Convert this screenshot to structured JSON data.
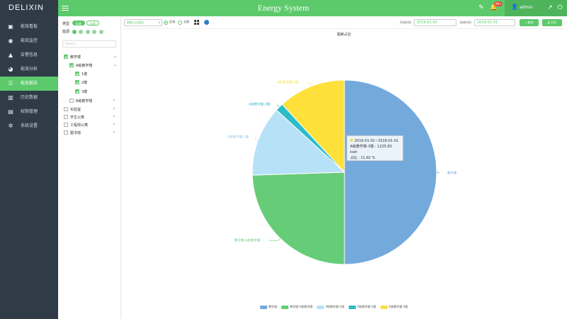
{
  "header": {
    "logo": "DELIXIN",
    "title": "Energy System",
    "notification_badge": "99+",
    "username": "admin",
    "accent": "#5cc96b",
    "dark": "#2f3c48"
  },
  "sidebar": {
    "items": [
      {
        "label": "能效看板",
        "icon": "dashboard-icon"
      },
      {
        "label": "能效监控",
        "icon": "eye-icon"
      },
      {
        "label": "告警信息",
        "icon": "bell-icon"
      },
      {
        "label": "能效分析",
        "icon": "chart-pie-icon"
      },
      {
        "label": "能效报告",
        "icon": "report-icon"
      },
      {
        "label": "历史数据",
        "icon": "bar-chart-icon"
      },
      {
        "label": "权限管理",
        "icon": "user-card-icon"
      },
      {
        "label": "系统设置",
        "icon": "gear-icon"
      }
    ],
    "active_index": 4
  },
  "filter": {
    "type_label": "类型",
    "type_options": [
      "区域",
      "支路"
    ],
    "energy_label": "能源",
    "search_placeholder": "Search...",
    "tree": [
      {
        "label": "教学楼",
        "checked": true,
        "level": 0,
        "expanded": true
      },
      {
        "label": "A栋教学楼",
        "checked": true,
        "level": 1,
        "expanded": true
      },
      {
        "label": "1楼",
        "checked": true,
        "level": 2
      },
      {
        "label": "2楼",
        "checked": true,
        "level": 2
      },
      {
        "label": "3楼",
        "checked": true,
        "level": 2
      },
      {
        "label": "B栋教学楼",
        "checked": false,
        "level": 1,
        "expanded": false
      },
      {
        "label": "实验室",
        "checked": false,
        "level": 0,
        "expanded": false
      },
      {
        "label": "学生公寓",
        "checked": false,
        "level": 0,
        "expanded": false
      },
      {
        "label": "工程师公寓",
        "checked": false,
        "level": 0,
        "expanded": false
      },
      {
        "label": "图书馆",
        "checked": false,
        "level": 0,
        "expanded": false
      }
    ]
  },
  "toolbar": {
    "report_type": "能耗占比报告",
    "radio_area": "区域",
    "radio_branch": "支路",
    "start_label": "开始时间",
    "start_value": "2019-01-01",
    "end_label": "结束时间",
    "end_value": "2019-01-01",
    "query_label": "查询",
    "print_label": "打印"
  },
  "chart_data": {
    "type": "pie",
    "title": "能耗占比",
    "slices": [
      {
        "name": "教学楼",
        "value": 50.0,
        "color": "#74a9dc"
      },
      {
        "name": "教学楼-A栋教学楼",
        "value": 24.5,
        "color": "#66cc77"
      },
      {
        "name": "A栋教学楼-1楼",
        "value": 12.3,
        "color": "#b7e1f7"
      },
      {
        "name": "A栋教学楼-2楼",
        "value": 1.4,
        "color": "#2cbcc8"
      },
      {
        "name": "A栋教学楼-3楼",
        "value": 11.8,
        "color": "#fde03a"
      }
    ],
    "legend": [
      "教学楼",
      "教学楼-A栋教学楼",
      "A栋教学楼-1楼",
      "A栋教学楼-2楼",
      "A栋教学楼-3楼"
    ],
    "legend_position": "bottom",
    "tooltip": {
      "title": "2019-01-01~2019-01-01",
      "line1": "A栋教学楼-3楼 : 1235.83 kwh",
      "line2": "占比 : 11.82 %"
    }
  }
}
